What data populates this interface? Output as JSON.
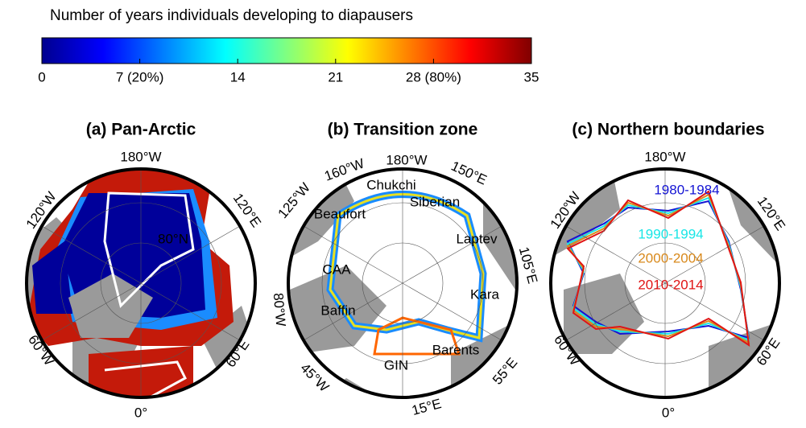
{
  "colorbar": {
    "title": "Number of years individuals developing to diapausers",
    "lim": [
      0,
      35
    ],
    "ticks": [
      0,
      {
        "value": 7,
        "label": "7 (20%)"
      },
      14,
      21,
      {
        "value": 28,
        "label": "28 (80%)"
      },
      35
    ],
    "colormap": [
      "#00008f",
      "#0000ff",
      "#0080ff",
      "#00ffff",
      "#80ff80",
      "#ffff00",
      "#ff8000",
      "#ff0000",
      "#800000"
    ]
  },
  "panels": [
    {
      "title": "(a) Pan-Arctic",
      "labels": [
        "180°W",
        "120°W",
        "120°E",
        "80°N",
        "60°W",
        "60°E",
        "0°"
      ]
    },
    {
      "title": "(b) Transition zone",
      "labels": [
        "160°W",
        "180°W",
        "150°E",
        "125°W",
        "105°E",
        "80°W",
        "45°W",
        "15°E",
        "55°E"
      ],
      "regions": [
        "Chukchi",
        "Siberian",
        "Beaufort",
        "Laptev",
        "CAA",
        "Kara",
        "Baffin",
        "Barents",
        "GIN"
      ]
    },
    {
      "title": "(c) Northern boundaries",
      "labels": [
        "180°W",
        "120°W",
        "120°E",
        "60°W",
        "60°E",
        "0°"
      ],
      "series": [
        {
          "name": "1980-1984",
          "color": "#1414d4"
        },
        {
          "name": "1990-1994",
          "color": "#19e6e6"
        },
        {
          "name": "2000-2004",
          "color": "#d8891c"
        },
        {
          "name": "2010-2014",
          "color": "#e01414"
        }
      ]
    }
  ]
}
